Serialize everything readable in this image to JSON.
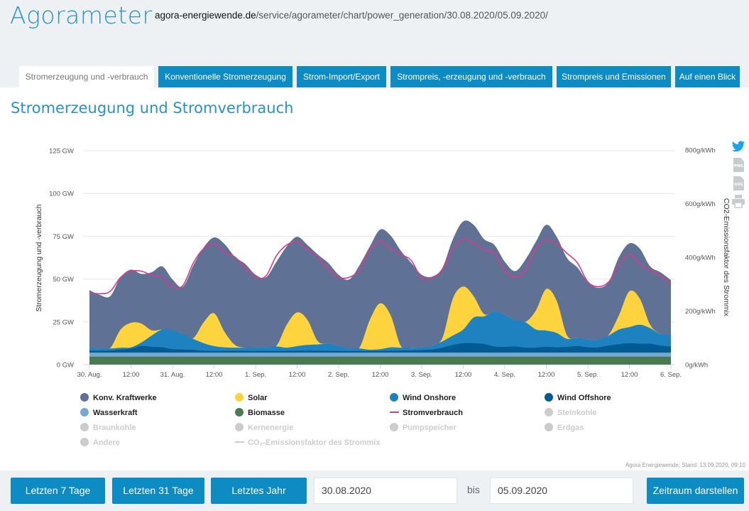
{
  "header": {
    "title": "Agorameter",
    "url_domain": "agora-energiewende.de",
    "url_path": "/service/agorameter/chart/power_generation/30.08.2020/05.09.2020/"
  },
  "tabs": [
    {
      "label": "Stromerzeugung und -verbrauch",
      "active": true
    },
    {
      "label": "Konventionelle Stromerzeugung"
    },
    {
      "label": "Strom-Import/Export"
    },
    {
      "label": "Strompreis, -erzeugung und -verbrauch"
    },
    {
      "label": "Strompreis und Emissionen"
    },
    {
      "label": "Auf einen Blick"
    }
  ],
  "page_title": "Stromerzeugung und Stromverbrauch",
  "side_icons": [
    "twitter-icon",
    "png-export-icon",
    "svg-export-icon",
    "print-icon"
  ],
  "side_icon_labels": {
    "png": "PNG",
    "svg": "SVG"
  },
  "chart_data": {
    "type": "area",
    "stacked": true,
    "ylabel": "Stromerzeugung und -verbrauch",
    "ylabel_right": "CO2-Emissionsfaktor des Strommix",
    "ylim": [
      0,
      125
    ],
    "yticks": [
      "0 GW",
      "25 GW",
      "50 GW",
      "75 GW",
      "100 GW",
      "125 GW"
    ],
    "ylim_right": [
      0,
      800
    ],
    "yticks_right": [
      "0g/kWh",
      "200g/kWh",
      "400g/kWh",
      "600g/kWh",
      "800g/kWh"
    ],
    "xticks": [
      "30. Aug.",
      "12:00",
      "31. Aug.",
      "12:00",
      "1. Sep.",
      "12:00",
      "2. Sep.",
      "12:00",
      "3. Sep.",
      "12:00",
      "4. Sep.",
      "12:00",
      "5. Sep.",
      "12:00",
      "6. Sep."
    ],
    "x_interval_hours": 3,
    "grid": true,
    "series": [
      {
        "name": "Biomasse",
        "color": "#4a7a52",
        "values": [
          4.6,
          4.6,
          4.6,
          4.6,
          4.6,
          4.6,
          4.6,
          4.6,
          4.6,
          4.6,
          4.6,
          4.6,
          4.6,
          4.6,
          4.6,
          4.6,
          4.6,
          4.6,
          4.6,
          4.6,
          4.6,
          4.6,
          4.6,
          4.6,
          4.6,
          4.6,
          4.6,
          4.6,
          4.6,
          4.6,
          4.6,
          4.6,
          4.6,
          4.6,
          4.6,
          4.6,
          4.6,
          4.6,
          4.6,
          4.6,
          4.6,
          4.6,
          4.6,
          4.6,
          4.6,
          4.6,
          4.6,
          4.6,
          4.6,
          4.6,
          4.6,
          4.6,
          4.6,
          4.6,
          4.6,
          4.6,
          4.6
        ]
      },
      {
        "name": "Wasserkraft",
        "color": "#76a8d0",
        "values": [
          2.4,
          2.4,
          2.4,
          2.4,
          2.4,
          2.4,
          2.4,
          2.4,
          2.4,
          2.4,
          2.4,
          2.4,
          2.4,
          2.4,
          2.4,
          2.4,
          2.4,
          2.4,
          2.4,
          2.4,
          2.4,
          2.4,
          2.4,
          2.4,
          2.4,
          2.4,
          2.4,
          2.4,
          2.4,
          2.4,
          2.4,
          2.4,
          2.4,
          2.4,
          2.4,
          2.4,
          2.4,
          2.4,
          2.4,
          2.4,
          2.4,
          2.4,
          2.4,
          2.4,
          2.4,
          2.4,
          2.4,
          2.4,
          2.4,
          2.4,
          2.4,
          2.4,
          2.4,
          2.4,
          2.4,
          2.4,
          2.4
        ]
      },
      {
        "name": "Wind Offshore",
        "color": "#005a94",
        "values": [
          1.1,
          1.1,
          1.2,
          1.8,
          2.4,
          3.8,
          3.4,
          3.1,
          2.0,
          1.8,
          1.6,
          1.1,
          1.0,
          1.0,
          1.0,
          1.0,
          1.0,
          1.0,
          1.0,
          1.0,
          1.1,
          1.2,
          1.1,
          1.0,
          1.0,
          0.9,
          0.9,
          0.9,
          1.0,
          1.1,
          1.2,
          1.3,
          1.5,
          1.8,
          2.9,
          4.5,
          5.5,
          5.5,
          5.0,
          3.6,
          3.4,
          3.6,
          2.9,
          2.9,
          3.4,
          3.1,
          3.4,
          3.8,
          3.1,
          3.1,
          4.1,
          4.9,
          5.5,
          5.2,
          5.2,
          4.1,
          3.6
        ]
      },
      {
        "name": "Wind Onshore",
        "color": "#1f82c0",
        "values": [
          1.6,
          1.3,
          1.2,
          1.1,
          0.7,
          2.1,
          6.6,
          10.4,
          11.2,
          9.0,
          6.4,
          4.4,
          2.8,
          2.1,
          1.9,
          1.9,
          2.1,
          2.1,
          2.6,
          1.9,
          2.7,
          3.3,
          3.7,
          4.2,
          2.8,
          1.5,
          1.5,
          0.8,
          1.0,
          2.0,
          1.7,
          1.6,
          1.6,
          2.0,
          3.7,
          5.5,
          8.0,
          15.0,
          16.2,
          20.4,
          18.5,
          15.5,
          14.8,
          10.6,
          9.5,
          8.4,
          4.6,
          4.9,
          4.6,
          4.5,
          5.9,
          8.6,
          9.4,
          11.1,
          9.1,
          6.7,
          7.2
        ]
      },
      {
        "name": "Solar",
        "color": "#fdd43d",
        "values": [
          0,
          0,
          0.3,
          10.6,
          14.3,
          11.1,
          3.0,
          0,
          0,
          0,
          0.5,
          12.2,
          19.2,
          9.1,
          1.6,
          0,
          0,
          0,
          0.3,
          13.4,
          19.7,
          14.6,
          1.8,
          0,
          0,
          0,
          0.5,
          17.4,
          26.8,
          18.8,
          0.9,
          0,
          0,
          0,
          2.1,
          21.6,
          25.1,
          12.5,
          1.4,
          0,
          0,
          0,
          0.3,
          11.2,
          24.3,
          18.7,
          2.0,
          0,
          0,
          0,
          0.3,
          8.4,
          20.9,
          15.3,
          2.0,
          0,
          0
        ]
      },
      {
        "name": "Konv. Kraftwerke",
        "color": "#5f7194",
        "values": [
          33.8,
          31.3,
          30.3,
          30.5,
          31.1,
          29,
          34,
          36.9,
          29.5,
          27.7,
          42.5,
          43.8,
          44.3,
          51.3,
          51.5,
          48.9,
          42.4,
          40.9,
          49.1,
          45.7,
          44.2,
          43.8,
          50.7,
          47.2,
          41.7,
          40.3,
          48.1,
          42.9,
          43.1,
          46.5,
          55.6,
          49.5,
          42.4,
          40.6,
          41,
          34.7,
          38.1,
          41.7,
          43.7,
          38.9,
          31.2,
          28.5,
          36.5,
          40.2,
          37.5,
          37.5,
          45.2,
          41,
          33.6,
          30.3,
          31,
          34,
          28,
          29.2,
          34.1,
          36.1,
          31.6
        ]
      }
    ],
    "line_series": [
      {
        "name": "Stromverbrauch",
        "color": "#d63c8c",
        "values": [
          42,
          41.4,
          42.8,
          51,
          54.6,
          54.6,
          52.2,
          51,
          45.5,
          46.2,
          59.4,
          67.8,
          70.8,
          65.7,
          62.9,
          56.7,
          51,
          51.8,
          63.6,
          69.9,
          71.9,
          67,
          62.9,
          56,
          51,
          51,
          55.3,
          67,
          72.2,
          67.8,
          64.3,
          60.8,
          50.4,
          51,
          55.3,
          67.8,
          73.3,
          71.2,
          67,
          65,
          54.6,
          51,
          55.3,
          67.8,
          72.9,
          70.5,
          65,
          59.4,
          48.3,
          45.5,
          48.3,
          58,
          64.3,
          58.8,
          55.3,
          51.8,
          47
        ]
      }
    ]
  },
  "legend": [
    {
      "label": "Konv. Kraftwerke",
      "color": "#5f7194",
      "active": true,
      "type": "dot"
    },
    {
      "label": "Solar",
      "color": "#fdd43d",
      "active": true,
      "type": "dot"
    },
    {
      "label": "Wind Onshore",
      "color": "#1f82c0",
      "active": true,
      "type": "dot"
    },
    {
      "label": "Wind Offshore",
      "color": "#005a94",
      "active": true,
      "type": "dot"
    },
    {
      "label": "Wasserkraft",
      "color": "#76a8d0",
      "active": true,
      "type": "dot"
    },
    {
      "label": "Biomasse",
      "color": "#4a7a52",
      "active": true,
      "type": "dot"
    },
    {
      "label": "Stromverbrauch",
      "color": "#d63c8c",
      "active": true,
      "type": "line"
    },
    {
      "label": "Steinkohle",
      "color": "#cccccc",
      "active": false,
      "type": "dot"
    },
    {
      "label": "Braunkohle",
      "color": "#cccccc",
      "active": false,
      "type": "dot"
    },
    {
      "label": "Kernenergie",
      "color": "#cccccc",
      "active": false,
      "type": "dot"
    },
    {
      "label": "Pumpspeicher",
      "color": "#cccccc",
      "active": false,
      "type": "dot"
    },
    {
      "label": "Erdgas",
      "color": "#cccccc",
      "active": false,
      "type": "dot"
    },
    {
      "label": "Andere",
      "color": "#cccccc",
      "active": false,
      "type": "dot"
    },
    {
      "label": "CO₂-Emissionsfaktor des Strommix",
      "color": "#cccccc",
      "active": false,
      "type": "line"
    }
  ],
  "source": "Agora Energiewende; Stand: 13.09.2020, 09:10",
  "controls": {
    "btn_7": "Letzten 7 Tage",
    "btn_31": "Letzten 31 Tage",
    "btn_year": "Letztes Jahr",
    "from": "30.08.2020",
    "bis": "bis",
    "to": "05.09.2020",
    "submit": "Zeitraum darstellen"
  }
}
